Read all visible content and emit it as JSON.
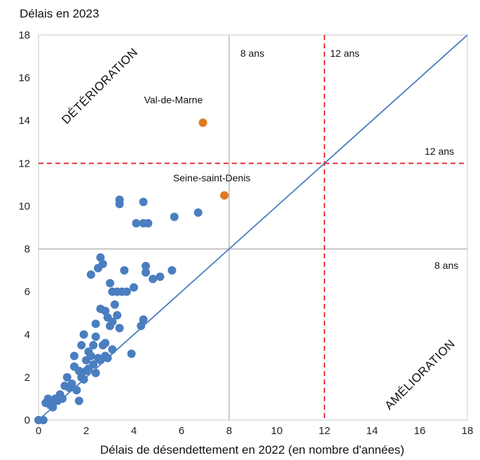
{
  "chart_data": {
    "type": "scatter",
    "title": "Délais en 2023",
    "xlabel": "Délais de désendettement en 2022 (en nombre d'années)",
    "ylabel": "Délais en 2023",
    "xlim": [
      0,
      18
    ],
    "ylim": [
      0,
      18
    ],
    "xticks": [
      "0",
      "2",
      "4",
      "6",
      "8",
      "10",
      "12",
      "14",
      "16",
      "18"
    ],
    "yticks": [
      "0",
      "2",
      "4",
      "6",
      "8",
      "10",
      "12",
      "14",
      "16",
      "18"
    ],
    "grid": false,
    "thresholds": {
      "solid": 8,
      "dashed": 12
    },
    "annotations": {
      "vline8": "8 ans",
      "vline12": "12 ans",
      "hline12": "12 ans",
      "hline8": "8 ans",
      "zone_top": "DÉTÉRIORATION",
      "zone_bottom": "AMÉLIORATION"
    },
    "colors": {
      "points": "#4a7ebf",
      "highlight": "#e07a1f",
      "diagonal": "#4a7ebf",
      "dashed": "#e0262a",
      "solid": "#b0b0b0"
    },
    "highlighted": [
      {
        "label": "Val-de-Marne",
        "x": 6.9,
        "y": 13.9
      },
      {
        "label": "Seine-saint-Denis",
        "x": 7.8,
        "y": 10.5
      }
    ],
    "points": [
      [
        0.0,
        0.0
      ],
      [
        0.2,
        0.0
      ],
      [
        0.3,
        0.8
      ],
      [
        0.4,
        1.0
      ],
      [
        0.5,
        0.7
      ],
      [
        0.6,
        0.6
      ],
      [
        0.7,
        1.0
      ],
      [
        0.8,
        0.9
      ],
      [
        0.9,
        1.2
      ],
      [
        1.0,
        1.0
      ],
      [
        1.1,
        1.6
      ],
      [
        1.2,
        2.0
      ],
      [
        1.3,
        1.5
      ],
      [
        1.4,
        1.7
      ],
      [
        1.5,
        2.5
      ],
      [
        1.5,
        3.0
      ],
      [
        1.6,
        1.4
      ],
      [
        1.7,
        0.9
      ],
      [
        1.7,
        2.3
      ],
      [
        1.8,
        2.0
      ],
      [
        1.8,
        3.5
      ],
      [
        1.9,
        1.9
      ],
      [
        1.9,
        4.0
      ],
      [
        2.0,
        2.3
      ],
      [
        2.0,
        2.8
      ],
      [
        2.1,
        2.4
      ],
      [
        2.1,
        3.2
      ],
      [
        2.2,
        6.8
      ],
      [
        2.2,
        3.0
      ],
      [
        2.3,
        2.6
      ],
      [
        2.3,
        3.5
      ],
      [
        2.4,
        2.2
      ],
      [
        2.4,
        3.9
      ],
      [
        2.4,
        4.5
      ],
      [
        2.5,
        2.9
      ],
      [
        2.5,
        7.1
      ],
      [
        2.6,
        2.8
      ],
      [
        2.6,
        5.2
      ],
      [
        2.6,
        7.6
      ],
      [
        2.7,
        3.5
      ],
      [
        2.7,
        7.3
      ],
      [
        2.8,
        3.0
      ],
      [
        2.8,
        5.1
      ],
      [
        2.8,
        3.6
      ],
      [
        2.9,
        2.9
      ],
      [
        2.9,
        4.8
      ],
      [
        3.0,
        4.4
      ],
      [
        3.0,
        6.4
      ],
      [
        3.1,
        3.3
      ],
      [
        3.1,
        4.6
      ],
      [
        3.1,
        6.0
      ],
      [
        3.2,
        5.4
      ],
      [
        3.3,
        4.9
      ],
      [
        3.3,
        6.0
      ],
      [
        3.4,
        4.3
      ],
      [
        3.4,
        10.3
      ],
      [
        3.4,
        10.1
      ],
      [
        3.5,
        6.0
      ],
      [
        3.6,
        7.0
      ],
      [
        3.7,
        6.0
      ],
      [
        3.9,
        3.1
      ],
      [
        4.0,
        6.2
      ],
      [
        4.1,
        9.2
      ],
      [
        4.3,
        4.4
      ],
      [
        4.4,
        4.7
      ],
      [
        4.4,
        9.2
      ],
      [
        4.4,
        10.2
      ],
      [
        4.5,
        6.9
      ],
      [
        4.5,
        7.2
      ],
      [
        4.6,
        9.2
      ],
      [
        4.8,
        6.6
      ],
      [
        5.1,
        6.7
      ],
      [
        5.6,
        7.0
      ],
      [
        5.7,
        9.5
      ],
      [
        6.7,
        9.7
      ]
    ]
  }
}
